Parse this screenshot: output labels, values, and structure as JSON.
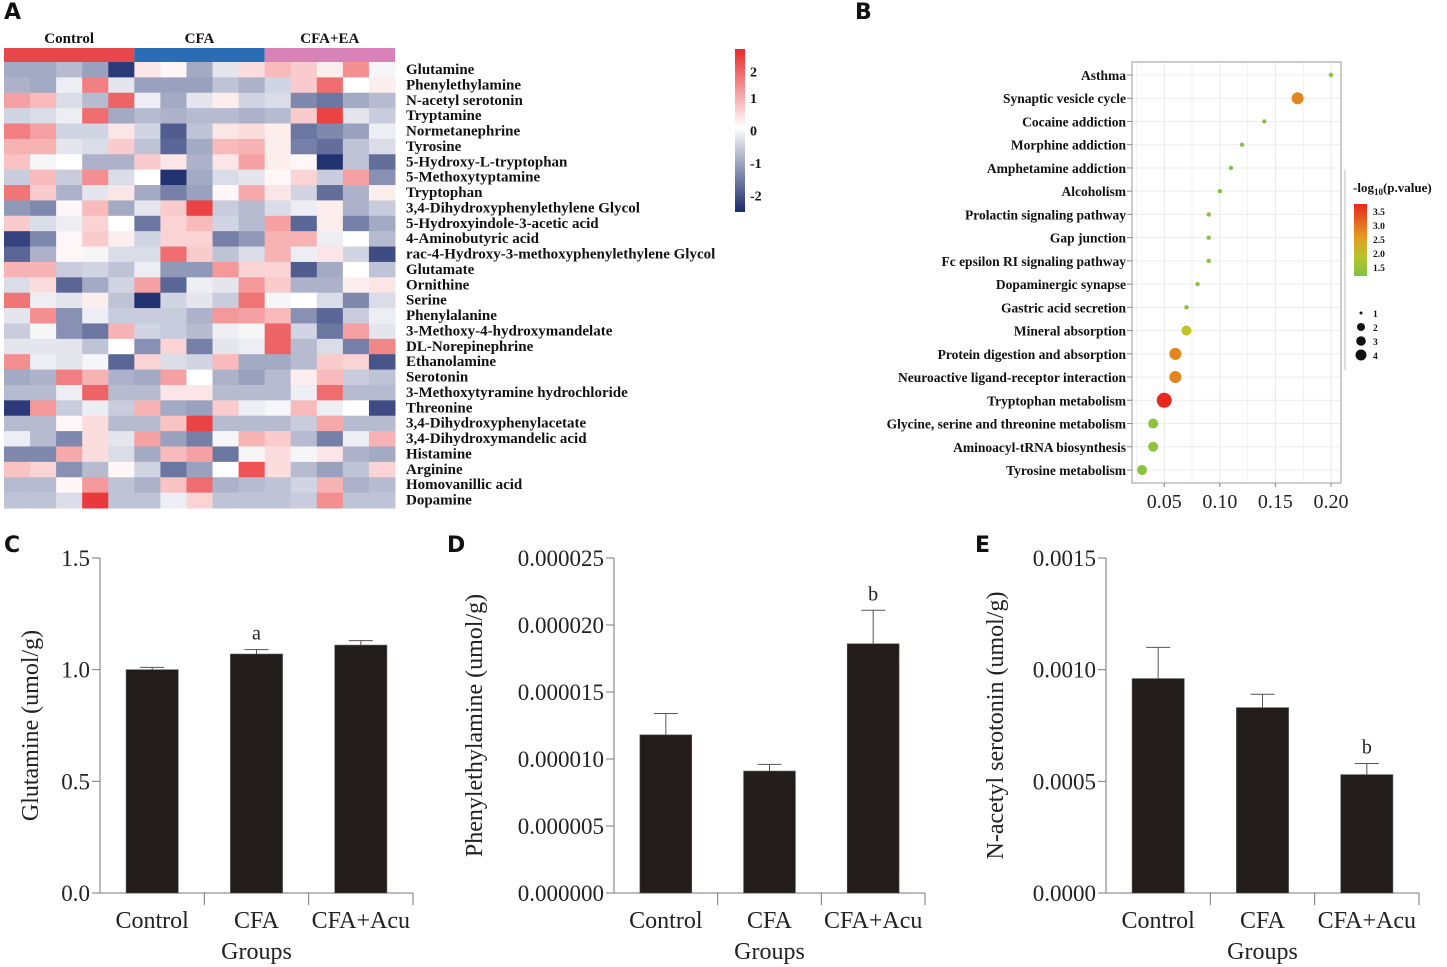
{
  "panels": {
    "A": "A",
    "B": "B",
    "C": "C",
    "D": "D",
    "E": "E"
  },
  "chart_data": [
    {
      "id": "A",
      "type": "heatmap",
      "title": "",
      "groups": [
        {
          "name": "Control",
          "color": "#e8474a",
          "columns": 5
        },
        {
          "name": "CFA",
          "color": "#2b6db5",
          "columns": 5
        },
        {
          "name": "CFA+EA",
          "color": "#d982b8",
          "columns": 5
        }
      ],
      "rows": [
        "Glutamine",
        "Phenylethylamine",
        "N-acetyl serotonin",
        "Tryptamine",
        "Normetanephrine",
        "Tyrosine",
        "5-Hydroxy-L-tryptophan",
        "5-Methoxytyptamine",
        "Tryptophan",
        "3,4-Dihydroxyphenylethylene Glycol",
        "5-Hydroxyindole-3-acetic acid",
        "4-Aminobutyric acid",
        "rac-4-Hydroxy-3-methoxyphenylethylene Glycol",
        "Glutamate",
        "Ornithine",
        "Serine",
        "Phenylalanine",
        "3-Methoxy-4-hydroxymandelate",
        "DL-Norepinephrine",
        "Ethanolamine",
        "Serotonin",
        "3-Methoxytyramine hydrochloride",
        "Threonine",
        "3,4-Dihydroxyphenylacetate",
        "3,4-Dihydroxymandelic acid",
        "Histamine",
        "Arginine",
        "Homovanillic acid",
        "Dopamine"
      ],
      "values": [
        [
          -1,
          -1,
          -0.8,
          -1.1,
          -2.3,
          0.3,
          0.1,
          -1,
          -0.3,
          0.4,
          0.8,
          0.6,
          0.2,
          1.3,
          -0.1
        ],
        [
          -0.9,
          -1,
          -0.2,
          1.5,
          -0.3,
          -1.1,
          -1.1,
          -1.1,
          -0.7,
          -0.9,
          -0.5,
          0.6,
          1.7,
          0,
          0.2
        ],
        [
          1.1,
          0.8,
          -0.4,
          -0.8,
          1.8,
          -0.2,
          -1,
          -0.3,
          0.2,
          -0.5,
          -0.4,
          -1.4,
          -1.6,
          -1,
          -0.8
        ],
        [
          -0.5,
          -0.4,
          -0.2,
          1.7,
          -1,
          -0.8,
          -0.9,
          -0.8,
          -0.8,
          -0.9,
          -0.8,
          0.6,
          2.2,
          -0.3,
          -0.6
        ],
        [
          1.5,
          1.1,
          -0.5,
          -0.5,
          0.3,
          -0.5,
          -1.9,
          -0.7,
          0.3,
          0.4,
          0.2,
          -1.6,
          -1.4,
          -1.1,
          -0.2
        ],
        [
          0.9,
          0.9,
          -0.3,
          -0.4,
          0.6,
          -0.7,
          -1.8,
          -1,
          0.8,
          0.9,
          0.2,
          -1.5,
          -1.7,
          -0.7,
          -0.4
        ],
        [
          0.7,
          -0.1,
          0,
          -0.9,
          -0.9,
          0.6,
          0.3,
          -0.9,
          0.3,
          1.1,
          0.2,
          0.1,
          -2.4,
          -0.7,
          -1.7
        ],
        [
          -0.6,
          0.8,
          -0.6,
          1.3,
          -0.4,
          0,
          -2.4,
          -1,
          -0.4,
          -0.3,
          0.1,
          0.5,
          -0.6,
          1.1,
          -1.3
        ],
        [
          1.6,
          0.6,
          -0.9,
          -0.3,
          0.3,
          -1,
          -1.5,
          -1.1,
          0.1,
          1,
          0.3,
          -0.5,
          -1.7,
          -0.9,
          0.2
        ],
        [
          -1.2,
          -1.4,
          0.1,
          0.8,
          -1,
          -0.3,
          0.6,
          2.2,
          -0.6,
          -0.8,
          -0.4,
          -0.2,
          0.2,
          -0.9,
          -0.6
        ],
        [
          0.6,
          -0.4,
          -0.2,
          0.5,
          0,
          -1.6,
          0.5,
          0.8,
          -0.5,
          -0.8,
          1.1,
          -1.8,
          0.2,
          -1.5,
          -1
        ],
        [
          -2.2,
          -1.4,
          0.1,
          0.6,
          0.2,
          -0.5,
          0.5,
          0.5,
          -1.5,
          -1.2,
          0.9,
          0.9,
          -0.2,
          0,
          -0.8
        ],
        [
          -1.8,
          -0.9,
          0.1,
          -0.1,
          -0.4,
          -0.4,
          1.7,
          0.6,
          -0.7,
          -0.4,
          0.9,
          -0.2,
          0.3,
          -0.5,
          -2.1
        ],
        [
          0.9,
          0.9,
          -0.6,
          -0.5,
          -0.7,
          -0.2,
          -1.2,
          -1.2,
          1.2,
          0.5,
          0.5,
          -1.9,
          -1,
          0,
          -0.7
        ],
        [
          -0.4,
          0.4,
          -1.8,
          -1,
          -0.5,
          1.1,
          -1.8,
          -0.2,
          -0.3,
          1.2,
          0.6,
          -0.9,
          -0.9,
          0.2,
          0.3
        ],
        [
          1.6,
          -0.2,
          -0.3,
          0.2,
          -0.7,
          -2.4,
          -0.5,
          -0.3,
          -0.6,
          1.6,
          -0.1,
          0,
          -0.4,
          -1.4,
          -0.4
        ],
        [
          -0.3,
          1.3,
          -1.3,
          -0.2,
          -0.6,
          -0.6,
          -0.6,
          -0.9,
          1.2,
          1.1,
          0.8,
          -1.3,
          -1.8,
          -0.6,
          -0.2
        ],
        [
          -0.6,
          -0.1,
          -1.3,
          -1.6,
          0.9,
          -0.5,
          -0.6,
          -0.8,
          -0.2,
          -0.1,
          1.8,
          -0.5,
          -1.6,
          1.1,
          -0.3
        ],
        [
          -0.3,
          -0.3,
          -0.3,
          -0.7,
          0,
          -1.3,
          0.5,
          -1.5,
          -0.3,
          -0.2,
          1.8,
          -0.8,
          -0.4,
          -1.5,
          1.4
        ],
        [
          1.3,
          -0.2,
          -0.3,
          -0.1,
          -1.8,
          0.5,
          -0.4,
          -0.5,
          0.8,
          -1,
          -1,
          -0.8,
          0.6,
          0.5,
          -2
        ],
        [
          -1,
          -0.9,
          1.5,
          0.9,
          -0.9,
          -1,
          1.1,
          0,
          -0.9,
          -1.1,
          -0.8,
          0.2,
          0.8,
          -0.6,
          -0.7
        ],
        [
          -0.8,
          -0.8,
          -0.2,
          1.8,
          -0.8,
          -0.8,
          0.3,
          0.3,
          -0.8,
          -0.8,
          -0.8,
          -0.2,
          1.7,
          -0.8,
          -0.8
        ],
        [
          -2.3,
          1.2,
          -0.6,
          -0.2,
          -0.6,
          0.9,
          -1,
          -1.1,
          0.6,
          -0.2,
          -0.1,
          0.8,
          -0.2,
          0,
          -2.1
        ],
        [
          -0.8,
          -0.8,
          0.1,
          0.4,
          -0.8,
          -0.8,
          0.7,
          2.2,
          -0.8,
          -0.8,
          -0.8,
          -0.6,
          1,
          -0.8,
          -0.8
        ],
        [
          -0.2,
          -0.8,
          -1.4,
          0.4,
          -0.3,
          1.1,
          -1.1,
          -1.5,
          -0.1,
          0.9,
          0.6,
          -0.8,
          -1.5,
          -0.2,
          0.9
        ],
        [
          -1.4,
          -1.4,
          1,
          0.4,
          -0.4,
          -1,
          0.8,
          1.1,
          -1.6,
          -0.1,
          0.4,
          -0.1,
          0.3,
          -0.9,
          -1
        ],
        [
          0.7,
          0.5,
          -1.3,
          -0.8,
          0.1,
          -0.5,
          -1.6,
          -1.1,
          0,
          2,
          0.4,
          -0.8,
          -1.1,
          -0.7,
          0.5
        ],
        [
          -0.8,
          -0.8,
          0.1,
          1.2,
          -0.7,
          -0.9,
          0.7,
          1.7,
          -0.9,
          -0.8,
          -0.7,
          -0.5,
          0.9,
          -0.9,
          -0.8
        ],
        [
          -0.7,
          -0.7,
          -0.4,
          2.3,
          -0.7,
          -0.7,
          -0.2,
          0.5,
          -0.7,
          -0.7,
          -0.7,
          -0.6,
          1.3,
          -0.7,
          -0.7
        ]
      ],
      "colorscale": {
        "min": -2.5,
        "max": 2.5,
        "low": "#1a2a6c",
        "mid": "#ffffff",
        "high": "#e8282b"
      },
      "colorbar_ticks": [
        "2",
        "1",
        "0",
        "-1",
        "-2"
      ],
      "colorbar_tick_values": [
        2,
        1,
        0,
        -1,
        -2
      ]
    },
    {
      "id": "B",
      "type": "scatter",
      "title": "",
      "xlabel": "",
      "ylabel": "",
      "xlim": [
        0.021,
        0.209
      ],
      "xticks": [
        0.05,
        0.1,
        0.15,
        0.2
      ],
      "xtick_labels": [
        "0.05",
        "0.10",
        "0.15",
        "0.20"
      ],
      "grid": true,
      "pathways": [
        {
          "name": "Asthma",
          "x": 0.2,
          "count": 1,
          "neglog10p": 1.5
        },
        {
          "name": "Synaptic vesicle cycle",
          "x": 0.17,
          "count": 3,
          "neglog10p": 3.0
        },
        {
          "name": "Cocaine addiction",
          "x": 0.14,
          "count": 1,
          "neglog10p": 1.5
        },
        {
          "name": "Morphine addiction",
          "x": 0.12,
          "count": 1,
          "neglog10p": 1.5
        },
        {
          "name": "Amphetamine addiction",
          "x": 0.11,
          "count": 1,
          "neglog10p": 1.5
        },
        {
          "name": "Alcoholism",
          "x": 0.1,
          "count": 1,
          "neglog10p": 1.5
        },
        {
          "name": "Prolactin signaling pathway",
          "x": 0.09,
          "count": 1,
          "neglog10p": 1.5
        },
        {
          "name": "Gap junction",
          "x": 0.09,
          "count": 1,
          "neglog10p": 1.5
        },
        {
          "name": "Fc epsilon RI signaling pathway",
          "x": 0.09,
          "count": 1,
          "neglog10p": 1.5
        },
        {
          "name": "Dopaminergic synapse",
          "x": 0.08,
          "count": 1,
          "neglog10p": 1.5
        },
        {
          "name": "Gastric acid secretion",
          "x": 0.07,
          "count": 1,
          "neglog10p": 1.5
        },
        {
          "name": "Mineral absorption",
          "x": 0.07,
          "count": 2,
          "neglog10p": 2.2
        },
        {
          "name": "Protein digestion and absorption",
          "x": 0.06,
          "count": 3,
          "neglog10p": 3.0
        },
        {
          "name": "Neuroactive ligand-receptor interaction",
          "x": 0.06,
          "count": 3,
          "neglog10p": 3.0
        },
        {
          "name": "Tryptophan metabolism",
          "x": 0.05,
          "count": 4,
          "neglog10p": 3.7
        },
        {
          "name": "Glycine, serine and threonine metabolism",
          "x": 0.04,
          "count": 2,
          "neglog10p": 1.6
        },
        {
          "name": "Aminoacyl-tRNA biosynthesis",
          "x": 0.04,
          "count": 2,
          "neglog10p": 1.6
        },
        {
          "name": "Tyrosine metabolism",
          "x": 0.03,
          "count": 2,
          "neglog10p": 1.6
        }
      ],
      "legend": {
        "color_title_prefix": "-log",
        "color_title_sub": "10",
        "color_title_suffix": "(p.value)",
        "color_ticks": [
          "3.5",
          "3.0",
          "2.5",
          "2.0",
          "1.5"
        ],
        "color_range": [
          1.4,
          3.7
        ],
        "color_low": "#7dc242",
        "color_mid": "#e0c020",
        "color_high": "#e8281e",
        "size_labels": [
          "1",
          "2",
          "3",
          "4"
        ],
        "placement": "right"
      }
    },
    {
      "id": "C",
      "type": "bar",
      "categories": [
        "Control",
        "CFA",
        "CFA+Acu"
      ],
      "values": [
        1.0,
        1.07,
        1.11
      ],
      "error_upper": [
        1.01,
        1.09,
        1.13
      ],
      "annotations": [
        "",
        "a",
        ""
      ],
      "ylabel": "Glutamine (umol/g)",
      "xlabel": "Groups",
      "ylim": [
        0,
        1.5
      ],
      "yticks": [
        0,
        0.5,
        1.0,
        1.5
      ],
      "ytick_labels": [
        "0.0",
        "0.5",
        "1.0",
        "1.5"
      ],
      "bar_color": "#221c1a"
    },
    {
      "id": "D",
      "type": "bar",
      "categories": [
        "Control",
        "CFA",
        "CFA+Acu"
      ],
      "values": [
        1.18e-05,
        9.1e-06,
        1.86e-05
      ],
      "error_upper": [
        1.34e-05,
        9.6e-06,
        2.11e-05
      ],
      "annotations": [
        "",
        "",
        "b"
      ],
      "ylabel": "Phenylethylamine (umol/g)",
      "xlabel": "Groups",
      "ylim": [
        0,
        2.5e-05
      ],
      "yticks": [
        0,
        5e-06,
        1e-05,
        1.5e-05,
        2e-05,
        2.5e-05
      ],
      "ytick_labels": [
        "0.000000",
        "0.000005",
        "0.000010",
        "0.000015",
        "0.000020",
        "0.000025"
      ],
      "bar_color": "#221c1a"
    },
    {
      "id": "E",
      "type": "bar",
      "categories": [
        "Control",
        "CFA",
        "CFA+Acu"
      ],
      "values": [
        0.00096,
        0.00083,
        0.00053
      ],
      "error_upper": [
        0.0011,
        0.00089,
        0.00058
      ],
      "annotations": [
        "",
        "",
        "b"
      ],
      "ylabel": "N-acetyl serotonin (umol/g)",
      "xlabel": "Groups",
      "ylim": [
        0,
        0.0015
      ],
      "yticks": [
        0,
        0.0005,
        0.001,
        0.0015
      ],
      "ytick_labels": [
        "0.0000",
        "0.0005",
        "0.0010",
        "0.0015"
      ],
      "bar_color": "#221c1a"
    }
  ]
}
